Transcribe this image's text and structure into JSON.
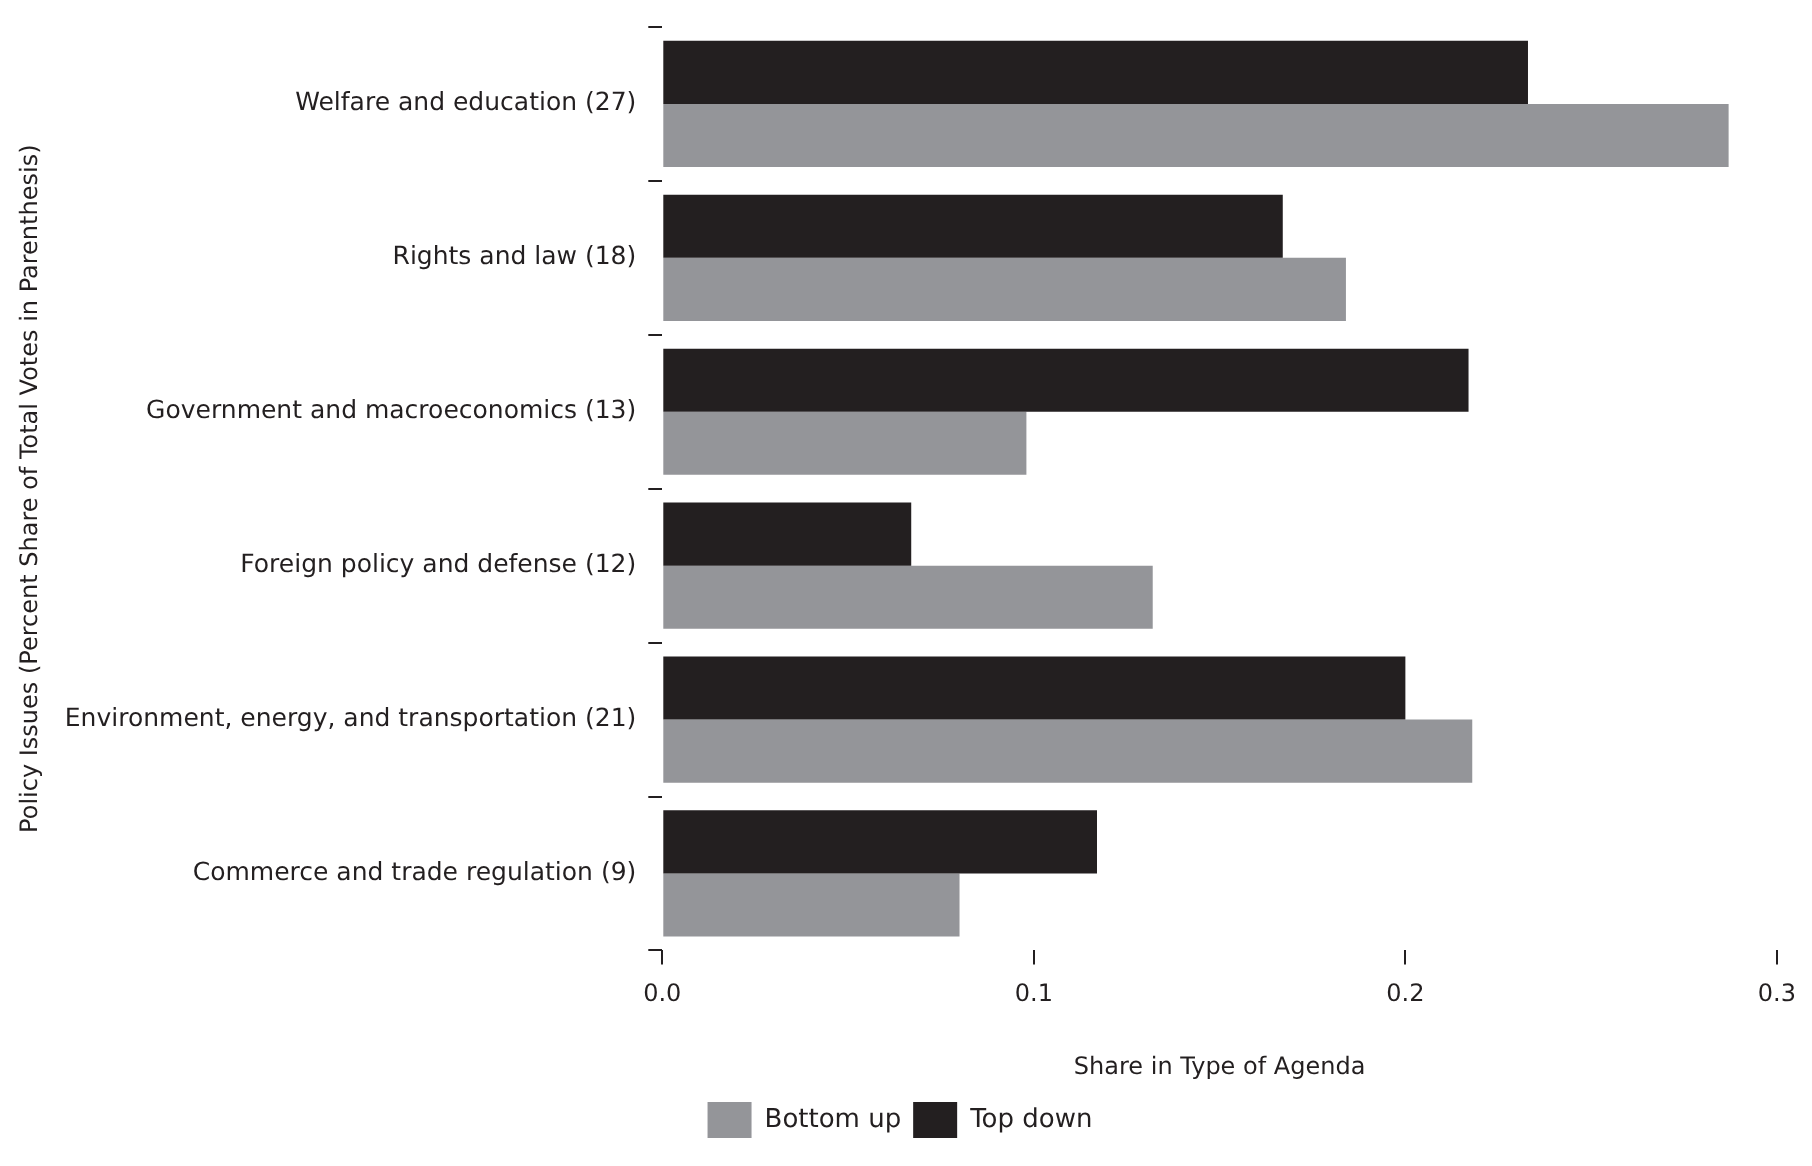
{
  "chart_data": {
    "type": "bar",
    "orientation": "horizontal",
    "xlabel": "Share in Type of Agenda",
    "ylabel": "Policy Issues (Percent Share of Total Votes in Parenthesis)",
    "categories": [
      "Welfare and education (27)",
      "Rights and law (18)",
      "Government and macroeconomics (13)",
      "Foreign policy and defense (12)",
      "Environment, energy, and transportation (21)",
      "Commerce and trade regulation (9)"
    ],
    "series": [
      {
        "name": "Bottom up",
        "color": "#949599",
        "values": [
          0.287,
          0.184,
          0.098,
          0.132,
          0.218,
          0.08
        ]
      },
      {
        "name": "Top down",
        "color": "#231f20",
        "values": [
          0.233,
          0.167,
          0.217,
          0.067,
          0.2,
          0.117
        ]
      }
    ],
    "xlim": [
      0,
      0.3
    ],
    "xticks": [
      {
        "value": 0,
        "label": "0.0"
      },
      0.1,
      0.2,
      0.3
    ],
    "grid": false,
    "legend": "bottom"
  }
}
